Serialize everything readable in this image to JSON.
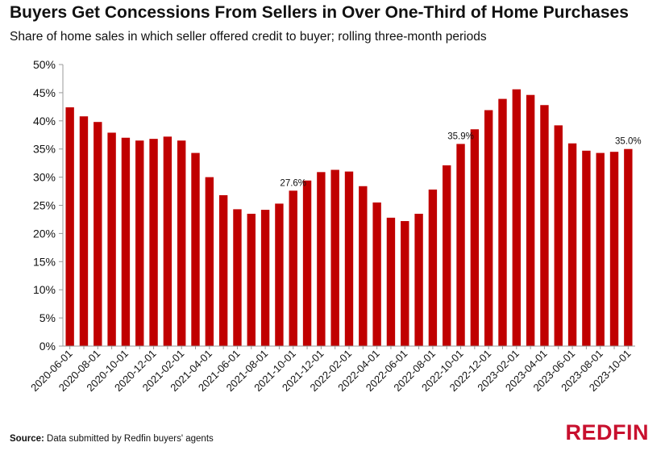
{
  "header": {
    "title": "Buyers Get Concessions From Sellers in Over One-Third of Home Purchases",
    "subtitle": "Share of home sales in which seller offered credit to buyer; rolling three-month periods"
  },
  "footer": {
    "source_label": "Source:",
    "source_text": " Data submitted by Redfin buyers' agents",
    "logo": "REDFIN"
  },
  "colors": {
    "bar": "#c00000",
    "axis": "#999999",
    "text": "#111111",
    "logo": "#c8102e"
  },
  "chart_data": {
    "type": "bar",
    "title": "Buyers Get Concessions From Sellers in Over One-Third of Home Purchases",
    "subtitle": "Share of home sales in which seller offered credit to buyer; rolling three-month periods",
    "xlabel": "",
    "ylabel": "",
    "ylim": [
      0,
      50
    ],
    "yticks": [
      0,
      5,
      10,
      15,
      20,
      25,
      30,
      35,
      40,
      45,
      50
    ],
    "ytick_labels": [
      "0%",
      "5%",
      "10%",
      "15%",
      "20%",
      "25%",
      "30%",
      "35%",
      "40%",
      "45%",
      "50%"
    ],
    "grid": false,
    "categories": [
      "2020-06-01",
      "2020-07-01",
      "2020-08-01",
      "2020-09-01",
      "2020-10-01",
      "2020-11-01",
      "2020-12-01",
      "2021-01-01",
      "2021-02-01",
      "2021-03-01",
      "2021-04-01",
      "2021-05-01",
      "2021-06-01",
      "2021-07-01",
      "2021-08-01",
      "2021-09-01",
      "2021-10-01",
      "2021-11-01",
      "2021-12-01",
      "2022-01-01",
      "2022-02-01",
      "2022-03-01",
      "2022-04-01",
      "2022-05-01",
      "2022-06-01",
      "2022-07-01",
      "2022-08-01",
      "2022-09-01",
      "2022-10-01",
      "2022-11-01",
      "2022-12-01",
      "2023-01-01",
      "2023-02-01",
      "2023-03-01",
      "2023-04-01",
      "2023-05-01",
      "2023-06-01",
      "2023-07-01",
      "2023-08-01",
      "2023-09-01",
      "2023-10-01"
    ],
    "xtick_labels": [
      "2020-06-01",
      "2020-08-01",
      "2020-10-01",
      "2020-12-01",
      "2021-02-01",
      "2021-04-01",
      "2021-06-01",
      "2021-08-01",
      "2021-10-01",
      "2021-12-01",
      "2022-02-01",
      "2022-04-01",
      "2022-06-01",
      "2022-08-01",
      "2022-10-01",
      "2022-12-01",
      "2023-02-01",
      "2023-04-01",
      "2023-06-01",
      "2023-08-01",
      "2023-10-01"
    ],
    "values": [
      42.4,
      40.8,
      39.8,
      37.9,
      37.0,
      36.5,
      36.8,
      37.2,
      36.5,
      34.3,
      30.0,
      26.8,
      24.3,
      23.5,
      24.2,
      25.3,
      27.6,
      29.4,
      30.9,
      31.3,
      31.0,
      28.4,
      25.5,
      22.8,
      22.2,
      23.5,
      27.8,
      32.1,
      35.9,
      38.5,
      41.9,
      43.9,
      45.6,
      44.6,
      42.8,
      39.2,
      36.0,
      34.7,
      34.3,
      34.5,
      35.0
    ],
    "data_labels": [
      {
        "index": 16,
        "text": "27.6%"
      },
      {
        "index": 28,
        "text": "35.9%"
      },
      {
        "index": 40,
        "text": "35.0%"
      }
    ]
  }
}
